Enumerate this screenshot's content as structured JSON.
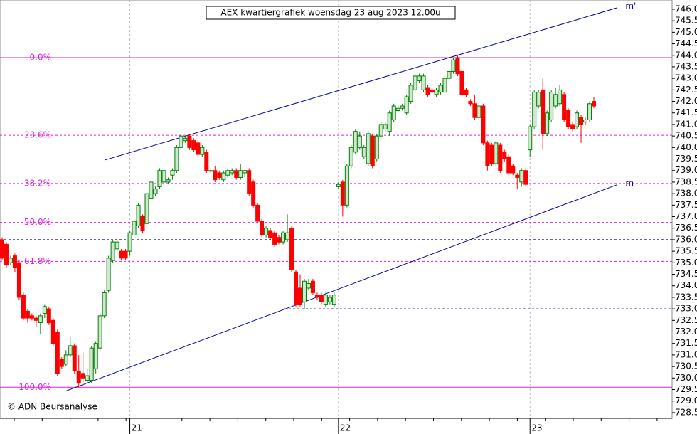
{
  "chart_data": {
    "type": "candlestick",
    "title": "AEX kwartiergrafiek woensdag 23 aug 2023 12.00u",
    "copyright": "© ADN Beursanalyse",
    "ylim": [
      728.25,
      746.4
    ],
    "yticks": [
      {
        "value": 728.5,
        "label": "728.5"
      },
      {
        "value": 729,
        "label": "729.0"
      },
      {
        "value": 729.5,
        "label": "729.5"
      },
      {
        "value": 730,
        "label": "730.0"
      },
      {
        "value": 730.5,
        "label": "730.5"
      },
      {
        "value": 731,
        "label": "731.0"
      },
      {
        "value": 731.5,
        "label": "731.5"
      },
      {
        "value": 732,
        "label": "732.0"
      },
      {
        "value": 732.5,
        "label": "732.5"
      },
      {
        "value": 733,
        "label": "733.0"
      },
      {
        "value": 733.5,
        "label": "733.5"
      },
      {
        "value": 734,
        "label": "734.0"
      },
      {
        "value": 734.5,
        "label": "734.5"
      },
      {
        "value": 735,
        "label": "735.0"
      },
      {
        "value": 735.5,
        "label": "735.5"
      },
      {
        "value": 736,
        "label": "736.0"
      },
      {
        "value": 736.5,
        "label": "736.5"
      },
      {
        "value": 737,
        "label": "737.0"
      },
      {
        "value": 737.5,
        "label": "737.5"
      },
      {
        "value": 738,
        "label": "738.0"
      },
      {
        "value": 738.5,
        "label": "738.5"
      },
      {
        "value": 739,
        "label": "739.0"
      },
      {
        "value": 739.5,
        "label": "739.5"
      },
      {
        "value": 740,
        "label": "740.0"
      },
      {
        "value": 740.5,
        "label": "740.5"
      },
      {
        "value": 741,
        "label": "741.0"
      },
      {
        "value": 741.5,
        "label": "741.5"
      },
      {
        "value": 742,
        "label": "742.0"
      },
      {
        "value": 742.5,
        "label": "742.5"
      },
      {
        "value": 743,
        "label": "743.0"
      },
      {
        "value": 743.5,
        "label": "743.5"
      },
      {
        "value": 744,
        "label": "744.0"
      },
      {
        "value": 744.5,
        "label": "744.5"
      },
      {
        "value": 745,
        "label": "745.0"
      },
      {
        "value": 745.5,
        "label": "745.5"
      },
      {
        "value": 746,
        "label": "746.0"
      }
    ],
    "up_color": "#008000",
    "down_color": "#ff0000",
    "fib_color": "#e020e0",
    "line_color": "#0000a0",
    "categories": [
      null,
      null,
      null,
      null,
      null,
      null,
      null,
      null,
      null,
      null,
      null,
      null,
      null,
      null,
      null,
      null,
      null,
      null,
      null,
      null,
      null,
      null,
      null,
      null,
      null,
      null,
      null,
      null,
      null,
      null,
      "21",
      null,
      null,
      null,
      null,
      null,
      null,
      null,
      null,
      null,
      null,
      null,
      null,
      null,
      null,
      null,
      null,
      null,
      null,
      null,
      null,
      null,
      null,
      null,
      null,
      null,
      null,
      null,
      null,
      null,
      null,
      null,
      null,
      null,
      null,
      null,
      null,
      null,
      null,
      null,
      null,
      null,
      null,
      null,
      null,
      null,
      null,
      null,
      null,
      "22",
      null,
      null,
      null,
      null,
      null,
      null,
      null,
      null,
      null,
      null,
      null,
      null,
      null,
      null,
      null,
      null,
      null,
      null,
      null,
      null,
      null,
      null,
      null,
      null,
      null,
      null,
      null,
      null,
      null,
      null,
      null,
      null,
      null,
      null,
      null,
      null,
      null,
      null,
      null,
      null,
      null,
      null,
      null,
      null,
      "23",
      null,
      null,
      null,
      null,
      null,
      null,
      null,
      null,
      null,
      null,
      null,
      null,
      null,
      null,
      null
    ],
    "candles": [
      [
        736.0,
        736.1,
        735.1,
        735.2
      ],
      [
        735.8,
        735.9,
        734.8,
        734.9
      ],
      [
        735.0,
        735.3,
        734.9,
        735.2
      ],
      [
        735.3,
        735.4,
        734.6,
        734.8
      ],
      [
        735.0,
        735.1,
        733.4,
        733.5
      ],
      [
        733.6,
        733.7,
        732.5,
        732.6
      ],
      [
        732.9,
        733.0,
        732.4,
        732.6
      ],
      [
        732.7,
        732.8,
        732.5,
        732.6
      ],
      [
        732.6,
        732.7,
        732.2,
        732.5
      ],
      [
        732.4,
        732.8,
        731.9,
        732.7
      ],
      [
        732.8,
        733.2,
        732.6,
        733.1
      ],
      [
        733.0,
        733.1,
        732.3,
        732.4
      ],
      [
        732.5,
        732.6,
        731.4,
        731.5
      ],
      [
        732.0,
        732.1,
        730.1,
        730.2
      ],
      [
        730.8,
        730.9,
        730.4,
        730.5
      ],
      [
        730.6,
        731.2,
        730.5,
        731.0
      ],
      [
        731.0,
        731.8,
        730.9,
        731.4
      ],
      [
        731.4,
        731.5,
        730.2,
        730.3
      ],
      [
        730.3,
        731.0,
        729.6,
        729.8
      ],
      [
        730.2,
        731.1,
        729.8,
        730.0
      ],
      [
        729.9,
        730.4,
        729.8,
        730.1
      ],
      [
        729.9,
        731.4,
        729.8,
        731.3
      ],
      [
        730.4,
        731.6,
        730.2,
        731.5
      ],
      [
        731.3,
        732.8,
        731.2,
        732.7
      ],
      [
        732.7,
        733.8,
        732.6,
        733.7
      ],
      [
        733.8,
        735.3,
        733.7,
        735.2
      ],
      [
        735.1,
        736.0,
        735.0,
        735.9
      ],
      [
        735.6,
        736.1,
        735.5,
        735.9
      ],
      [
        735.5,
        735.6,
        735.1,
        735.2
      ],
      [
        735.5,
        735.6,
        735.1,
        735.2
      ],
      [
        735.5,
        736.4,
        735.3,
        736.3
      ],
      [
        736.2,
        736.9,
        736.1,
        736.8
      ],
      [
        736.6,
        737.6,
        736.5,
        737.5
      ],
      [
        737.0,
        737.1,
        736.3,
        736.4
      ],
      [
        736.7,
        738.1,
        736.5,
        738.0
      ],
      [
        737.8,
        738.6,
        737.7,
        738.5
      ],
      [
        738.0,
        738.3,
        737.9,
        738.2
      ],
      [
        738.3,
        739.1,
        738.2,
        739.0
      ],
      [
        738.5,
        739.1,
        738.3,
        739.0
      ],
      [
        738.5,
        738.7,
        738.4,
        738.6
      ],
      [
        738.8,
        739.1,
        738.6,
        739.0
      ],
      [
        739.0,
        740.1,
        738.9,
        740.0
      ],
      [
        740.0,
        740.6,
        739.9,
        740.5
      ],
      [
        740.3,
        740.5,
        740.2,
        740.4
      ],
      [
        740.5,
        740.6,
        739.9,
        740.0
      ],
      [
        740.3,
        740.4,
        739.8,
        739.9
      ],
      [
        740.2,
        740.3,
        739.6,
        739.7
      ],
      [
        739.7,
        740.1,
        739.6,
        740.0
      ],
      [
        739.8,
        739.9,
        738.9,
        739.0
      ],
      [
        739.0,
        739.1,
        738.9,
        739.0
      ],
      [
        739.0,
        739.2,
        738.5,
        738.6
      ],
      [
        738.9,
        739.0,
        738.6,
        738.7
      ],
      [
        738.6,
        739.0,
        738.5,
        738.9
      ],
      [
        738.8,
        739.1,
        738.7,
        739.0
      ],
      [
        738.9,
        739.1,
        738.8,
        739.0
      ],
      [
        739.0,
        739.1,
        738.6,
        738.7
      ],
      [
        738.7,
        739.3,
        738.6,
        739.0
      ],
      [
        738.9,
        739.0,
        738.7,
        739.0
      ],
      [
        739.0,
        739.1,
        737.9,
        738.0
      ],
      [
        738.5,
        738.6,
        737.4,
        737.5
      ],
      [
        737.5,
        737.6,
        736.7,
        736.8
      ],
      [
        736.8,
        736.9,
        736.1,
        736.2
      ],
      [
        736.2,
        736.6,
        736.1,
        736.5
      ],
      [
        736.4,
        736.5,
        736.0,
        736.1
      ],
      [
        736.3,
        736.4,
        735.7,
        735.8
      ],
      [
        736.1,
        736.2,
        735.8,
        735.9
      ],
      [
        735.9,
        736.4,
        735.8,
        736.3
      ],
      [
        736.0,
        737.1,
        735.9,
        736.3
      ],
      [
        736.5,
        736.6,
        734.6,
        734.7
      ],
      [
        734.6,
        734.7,
        733.1,
        733.2
      ],
      [
        733.9,
        734.5,
        733.1,
        733.2
      ],
      [
        733.3,
        734.3,
        733.0,
        734.2
      ],
      [
        733.9,
        734.3,
        733.8,
        734.1
      ],
      [
        734.2,
        734.3,
        733.6,
        733.7
      ],
      [
        733.6,
        733.7,
        733.4,
        733.5
      ],
      [
        733.6,
        733.7,
        733.2,
        733.3
      ],
      [
        733.2,
        733.7,
        733.1,
        733.6
      ],
      [
        733.3,
        733.6,
        733.2,
        733.5
      ],
      [
        733.2,
        733.7,
        733.1,
        733.6
      ],
      [
        738.3,
        738.5,
        738.2,
        738.4
      ],
      [
        738.5,
        738.6,
        737.0,
        737.5
      ],
      [
        737.5,
        739.3,
        737.4,
        739.2
      ],
      [
        739.2,
        740.1,
        739.1,
        740.0
      ],
      [
        739.8,
        740.8,
        739.7,
        740.7
      ],
      [
        740.0,
        740.7,
        739.9,
        740.5
      ],
      [
        739.6,
        740.1,
        739.5,
        740.0
      ],
      [
        739.3,
        740.7,
        739.2,
        740.6
      ],
      [
        740.5,
        740.6,
        739.1,
        739.2
      ],
      [
        739.5,
        740.6,
        739.4,
        740.5
      ],
      [
        740.5,
        741.1,
        740.4,
        741.0
      ],
      [
        740.8,
        741.1,
        740.7,
        741.0
      ],
      [
        740.7,
        741.6,
        740.5,
        741.5
      ],
      [
        741.2,
        741.9,
        741.1,
        741.8
      ],
      [
        741.6,
        741.8,
        741.5,
        741.7
      ],
      [
        741.7,
        741.9,
        741.6,
        741.8
      ],
      [
        741.5,
        742.3,
        741.4,
        742.2
      ],
      [
        742.0,
        742.8,
        741.9,
        742.7
      ],
      [
        742.5,
        743.2,
        742.4,
        743.1
      ],
      [
        742.9,
        743.2,
        742.8,
        743.1
      ],
      [
        742.5,
        743.2,
        742.4,
        743.1
      ],
      [
        742.6,
        742.7,
        742.2,
        742.3
      ],
      [
        742.5,
        742.6,
        742.3,
        742.4
      ],
      [
        742.3,
        742.6,
        742.2,
        742.5
      ],
      [
        742.4,
        742.8,
        742.3,
        742.7
      ],
      [
        742.4,
        743.1,
        742.3,
        743.0
      ],
      [
        743.0,
        743.4,
        742.9,
        743.3
      ],
      [
        743.3,
        743.9,
        743.2,
        743.8
      ],
      [
        743.9,
        744.0,
        743.1,
        743.2
      ],
      [
        743.3,
        743.4,
        742.2,
        742.3
      ],
      [
        742.5,
        742.6,
        742.2,
        742.3
      ],
      [
        742.0,
        742.1,
        741.8,
        741.9
      ],
      [
        741.9,
        742.3,
        741.2,
        741.3
      ],
      [
        741.3,
        741.9,
        741.2,
        741.8
      ],
      [
        741.8,
        741.9,
        740.1,
        740.2
      ],
      [
        740.2,
        740.3,
        739.0,
        739.2
      ],
      [
        740.1,
        740.2,
        739.2,
        739.3
      ],
      [
        739.3,
        740.3,
        739.2,
        740.2
      ],
      [
        740.1,
        740.2,
        738.9,
        739.0
      ],
      [
        739.8,
        739.9,
        739.4,
        739.5
      ],
      [
        739.6,
        739.7,
        738.8,
        738.9
      ],
      [
        739.2,
        739.3,
        738.8,
        738.9
      ],
      [
        738.8,
        738.9,
        738.2,
        738.7
      ],
      [
        738.5,
        739.1,
        738.3,
        739.0
      ],
      [
        739.0,
        739.1,
        738.3,
        738.4
      ],
      [
        739.9,
        741.0,
        739.6,
        740.9
      ],
      [
        740.9,
        742.5,
        740.8,
        742.4
      ],
      [
        741.8,
        742.5,
        741.7,
        742.4
      ],
      [
        742.5,
        743.0,
        739.9,
        740.6
      ],
      [
        740.6,
        741.6,
        740.5,
        741.5
      ],
      [
        741.2,
        742.5,
        741.1,
        742.4
      ],
      [
        741.8,
        742.6,
        741.7,
        742.3
      ],
      [
        741.9,
        742.7,
        741.8,
        742.5
      ],
      [
        742.3,
        742.4,
        741.1,
        741.2
      ],
      [
        741.6,
        741.7,
        740.8,
        740.9
      ],
      [
        741.0,
        741.1,
        740.7,
        740.8
      ],
      [
        740.9,
        741.6,
        740.8,
        741.5
      ],
      [
        741.3,
        741.4,
        740.2,
        741.0
      ],
      [
        741.1,
        741.3,
        741.0,
        741.2
      ],
      [
        741.2,
        742.0,
        741.1,
        741.9
      ],
      [
        742.0,
        742.2,
        741.7,
        741.8
      ]
    ],
    "fib_levels": [
      {
        "label": "0.0%",
        "value": 743.9
      },
      {
        "label": "23.6%",
        "value": 740.53
      },
      {
        "label": "38.2%",
        "value": 738.44
      },
      {
        "label": "50.0%",
        "value": 736.75
      },
      {
        "label": "61.8%",
        "value": 735.06
      },
      {
        "label": "100.0%",
        "value": 729.6
      }
    ],
    "support_lines": [
      736.0,
      733.0
    ],
    "trendlines": [
      {
        "label": "m'",
        "x": [
          24.2,
          144.4
        ],
        "y": [
          739.46,
          746.06
        ]
      },
      {
        "label": "m",
        "x": [
          14.9,
          144.4
        ],
        "y": [
          729.43,
          738.38
        ]
      }
    ]
  }
}
